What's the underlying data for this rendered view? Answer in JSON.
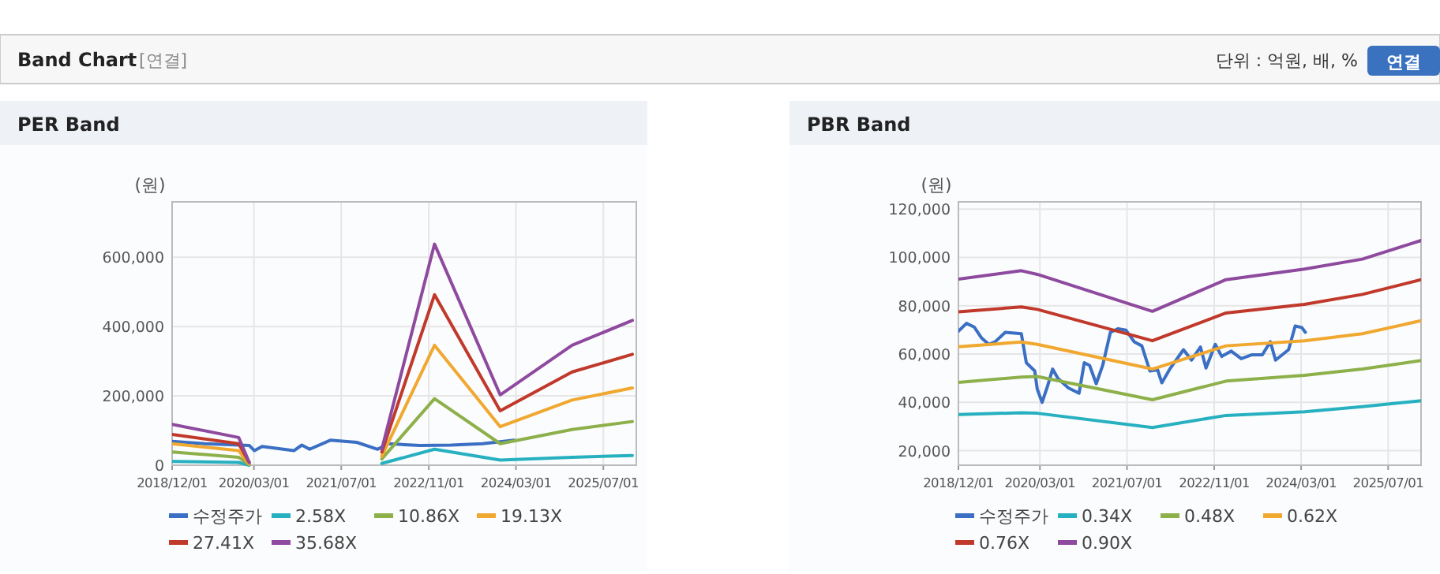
{
  "chart_data": [
    {
      "type": "line",
      "title": "PER Band",
      "ylabel": "(원)",
      "annotations": [
        "Band Chart",
        "[연결]",
        "단위 : 억원, 배, %",
        "연결"
      ],
      "x": [
        "2018-12-01",
        "2019-12-07",
        "2020-02-04",
        "2021-01-01",
        "2022-02-12",
        "2022-12-03",
        "2023-12-04",
        "2025-01-08",
        "2025-12-10"
      ],
      "xlim": [
        "2018-12-01",
        "2026-01-01"
      ],
      "xticks": [
        {
          "value": "2018-12-01",
          "label": "2018/12/01"
        },
        {
          "value": "2020-03-01",
          "label": "2020/03/01"
        },
        {
          "value": "2021-07-01",
          "label": "2021/07/01"
        },
        {
          "value": "2022-11-01",
          "label": "2022/11/01"
        },
        {
          "value": "2024-03-01",
          "label": "2024/03/01"
        },
        {
          "value": "2025-07-01",
          "label": "2025/07/01"
        }
      ],
      "ylim": [
        0,
        760000
      ],
      "yticks": [
        0,
        {
          "value": 200000,
          "label": "200,000"
        },
        {
          "value": 400000,
          "label": "400,000"
        },
        {
          "value": 600000,
          "label": "600,000"
        }
      ],
      "grid": true,
      "legend": "bottom",
      "marker": "none",
      "line_style": "solid",
      "series": [
        {
          "name": "수정주가",
          "color": "#3a6fc4",
          "x": [
            "2018-12-01",
            "2019-06-01",
            "2020-02-04",
            "2020-03-04",
            "2020-04-16",
            "2020-10-10",
            "2020-11-23",
            "2021-01-06",
            "2021-05-01",
            "2021-09-25",
            "2022-01-20",
            "2022-03-20",
            "2022-09-12",
            "2023-03-06",
            "2023-08-28",
            "2024-02-20"
          ],
          "values": [
            69000,
            62000,
            57000,
            42000,
            54000,
            42000,
            58000,
            46000,
            72000,
            66000,
            46000,
            62000,
            57000,
            58000,
            62000,
            72000
          ]
        },
        {
          "name": "2.58X",
          "color": "#27b0c0",
          "values": [
            11000,
            8000,
            0,
            null,
            5000,
            46000,
            15000,
            23000,
            28000
          ]
        },
        {
          "name": "10.86X",
          "color": "#8db04a",
          "values": [
            38000,
            23000,
            2000,
            null,
            18000,
            192000,
            62000,
            103000,
            126000
          ]
        },
        {
          "name": "19.13X",
          "color": "#f0a830",
          "values": [
            62000,
            42000,
            3000,
            null,
            26000,
            346000,
            111000,
            188000,
            223000
          ]
        },
        {
          "name": "27.41X",
          "color": "#c0392b",
          "values": [
            89000,
            62000,
            8000,
            null,
            38000,
            492000,
            157000,
            269000,
            320000
          ]
        },
        {
          "name": "35.68X",
          "color": "#8e4a9e",
          "values": [
            118000,
            80000,
            8000,
            null,
            46000,
            638000,
            203000,
            346000,
            418000
          ]
        }
      ]
    },
    {
      "type": "line",
      "title": "PBR Band",
      "ylabel": "(원)",
      "x": [
        "2018-12-01",
        "2019-11-18",
        "2020-02-15",
        "2021-11-20",
        "2023-01-06",
        "2024-03-20",
        "2025-02-07",
        "2026-01-01"
      ],
      "xlim": [
        "2018-12-01",
        "2026-01-01"
      ],
      "xticks": [
        {
          "value": "2018-12-01",
          "label": "2018/12/01"
        },
        {
          "value": "2020-03-01",
          "label": "2020/03/01"
        },
        {
          "value": "2021-07-01",
          "label": "2021/07/01"
        },
        {
          "value": "2022-11-01",
          "label": "2022/11/01"
        },
        {
          "value": "2024-03-01",
          "label": "2024/03/01"
        },
        {
          "value": "2025-07-01",
          "label": "2025/07/01"
        }
      ],
      "ylim": [
        14000,
        123000
      ],
      "yticks": [
        {
          "value": 20000,
          "label": "20,000"
        },
        {
          "value": 40000,
          "label": "40,000"
        },
        {
          "value": 60000,
          "label": "60,000"
        },
        {
          "value": 80000,
          "label": "80,000"
        },
        {
          "value": 100000,
          "label": "100,000"
        },
        {
          "value": 120000,
          "label": "120,000"
        }
      ],
      "grid": true,
      "legend": "bottom",
      "marker": "none",
      "line_style": "solid",
      "series": [
        {
          "name": "수정주가",
          "color": "#3a6fc4",
          "x": [
            "2018-12-01",
            "2019-01-15",
            "2019-02-27",
            "2019-04-10",
            "2019-05-20",
            "2019-06-25",
            "2019-08-20",
            "2019-11-18",
            "2019-12-16",
            "2020-02-01",
            "2020-02-15",
            "2020-03-13",
            "2020-04-12",
            "2020-05-11",
            "2020-06-10",
            "2020-08-07",
            "2020-10-06",
            "2020-11-04",
            "2020-12-04",
            "2021-01-10",
            "2021-02-15",
            "2021-03-30",
            "2021-05-13",
            "2021-06-25",
            "2021-08-10",
            "2021-09-22",
            "2021-11-06",
            "2021-12-19",
            "2022-01-12",
            "2022-03-01",
            "2022-05-13",
            "2022-06-27",
            "2022-08-16",
            "2022-09-16",
            "2022-11-07",
            "2022-12-13",
            "2023-02-04",
            "2023-04-01",
            "2023-06-01",
            "2023-07-28",
            "2023-09-11",
            "2023-10-10",
            "2023-12-22",
            "2024-01-28",
            "2024-03-05",
            "2024-03-25"
          ],
          "values": [
            69500,
            72700,
            71200,
            66600,
            64000,
            65100,
            69000,
            68400,
            56400,
            53000,
            45500,
            40000,
            46600,
            53800,
            49900,
            46000,
            43800,
            56400,
            55300,
            47700,
            55300,
            69000,
            70500,
            69900,
            65100,
            63400,
            53000,
            53500,
            48100,
            54200,
            61800,
            57500,
            62900,
            54200,
            64000,
            59000,
            61200,
            58100,
            59700,
            59700,
            65100,
            57500,
            61800,
            71600,
            71000,
            69000
          ]
        },
        {
          "name": "0.34X",
          "color": "#27b0c0",
          "values": [
            35000,
            35700,
            35500,
            29600,
            34600,
            36100,
            38200,
            40700
          ]
        },
        {
          "name": "0.48X",
          "color": "#8db04a",
          "values": [
            48300,
            50500,
            50700,
            41100,
            48800,
            51200,
            53800,
            57300
          ]
        },
        {
          "name": "0.62X",
          "color": "#f0a830",
          "values": [
            63000,
            65000,
            64000,
            53800,
            63400,
            65500,
            68400,
            73800
          ]
        },
        {
          "name": "0.76X",
          "color": "#c0392b",
          "values": [
            77500,
            79500,
            78500,
            65500,
            77000,
            80600,
            84700,
            90800
          ]
        },
        {
          "name": "0.90X",
          "color": "#8e4a9e",
          "values": [
            91000,
            94500,
            93000,
            77700,
            90800,
            95200,
            99300,
            107000
          ]
        }
      ]
    }
  ]
}
